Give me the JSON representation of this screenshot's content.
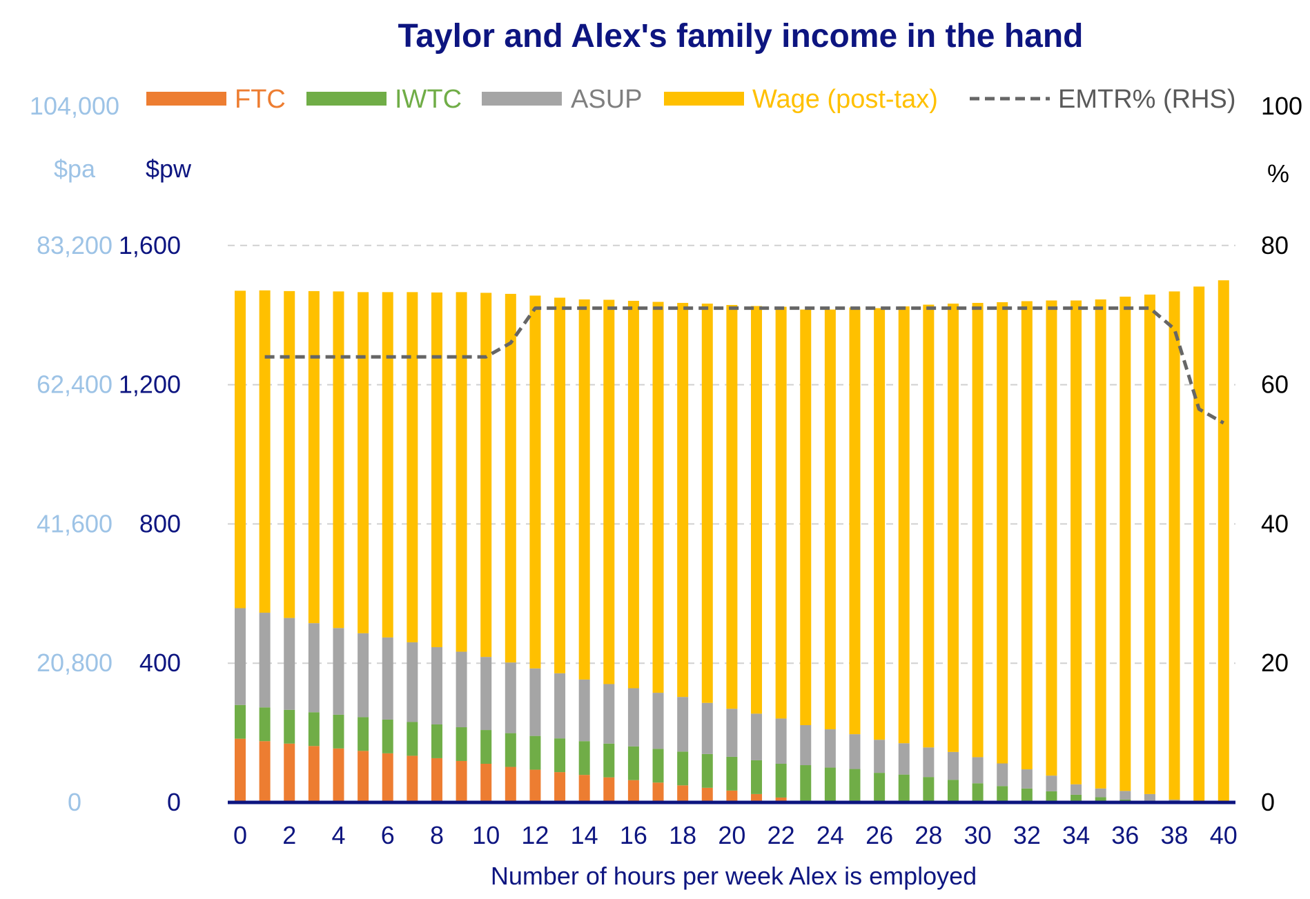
{
  "chart_data": {
    "type": "bar",
    "stacked": true,
    "title": "Taylor and Alex's family income in the hand",
    "xlabel": "Number of hours per week Alex is employed",
    "ylabel_left": "$pw",
    "ylabel_left_secondary": "$pa",
    "ylabel_right": "%",
    "x": [
      0,
      1,
      2,
      3,
      4,
      5,
      6,
      7,
      8,
      9,
      10,
      11,
      12,
      13,
      14,
      15,
      16,
      17,
      18,
      19,
      20,
      21,
      22,
      23,
      24,
      25,
      26,
      27,
      28,
      29,
      30,
      31,
      32,
      33,
      34,
      35,
      36,
      37,
      38,
      39,
      40
    ],
    "x_tick_labels": [
      "0",
      "2",
      "4",
      "6",
      "8",
      "10",
      "12",
      "14",
      "16",
      "18",
      "20",
      "22",
      "24",
      "26",
      "28",
      "30",
      "32",
      "34",
      "36",
      "38",
      "40"
    ],
    "y_pw_ticks": [
      "0",
      "400",
      "800",
      "1,200",
      "1,600"
    ],
    "y_pa_ticks": [
      "0",
      "20,800",
      "41,600",
      "62,400",
      "83,200",
      "104,000"
    ],
    "y_right_ticks": [
      "0",
      "20",
      "40",
      "60",
      "80",
      "100"
    ],
    "ylim_pw": [
      0,
      2000
    ],
    "ylim_right": [
      0,
      100
    ],
    "grid": "horizontal dashed",
    "legend_position": "top",
    "series": [
      {
        "name": "FTC",
        "color": "#ed7d31",
        "values": [
          183,
          176,
          169,
          162,
          155,
          148,
          141,
          134,
          127,
          119,
          111,
          102,
          94,
          87,
          79,
          72,
          64,
          57,
          49,
          42,
          34,
          24,
          14,
          5,
          0,
          0,
          0,
          0,
          0,
          0,
          0,
          0,
          0,
          0,
          0,
          0,
          0,
          0,
          0,
          0,
          0
        ]
      },
      {
        "name": "IWTC",
        "color": "#70ad47",
        "values": [
          97,
          97,
          97,
          97,
          97,
          97,
          97,
          97,
          97,
          97,
          97,
          97,
          97,
          97,
          97,
          97,
          97,
          97,
          97,
          97,
          97,
          97,
          97,
          102,
          100,
          96,
          85,
          80,
          73,
          65,
          55,
          47,
          40,
          32,
          22,
          15,
          8,
          4,
          0,
          0,
          0
        ]
      },
      {
        "name": "ASUP",
        "color": "#a5a5a5",
        "values": [
          278,
          272,
          264,
          256,
          249,
          241,
          236,
          229,
          222,
          217,
          210,
          203,
          194,
          187,
          177,
          171,
          167,
          161,
          157,
          147,
          138,
          134,
          130,
          115,
          110,
          100,
          95,
          90,
          85,
          80,
          75,
          65,
          55,
          45,
          30,
          25,
          25,
          20,
          8,
          3,
          0
        ]
      },
      {
        "name": "Wage (post-tax)",
        "color": "#ffc000",
        "values": [
          912,
          926,
          939,
          954,
          967,
          980,
          992,
          1006,
          1019,
          1033,
          1046,
          1059,
          1071,
          1079,
          1092,
          1104,
          1113,
          1123,
          1132,
          1147,
          1160,
          1171,
          1183,
          1194,
          1206,
          1226,
          1240,
          1255,
          1272,
          1288,
          1305,
          1325,
          1345,
          1365,
          1390,
          1405,
          1420,
          1435,
          1460,
          1479,
          1500
        ]
      },
      {
        "name": "EMTR% (RHS)",
        "color": "#666666",
        "axis": "right",
        "type": "line",
        "values": [
          null,
          64,
          64,
          64,
          64,
          64,
          64,
          64,
          64,
          64,
          64,
          66,
          71,
          71,
          71,
          71,
          71,
          71,
          71,
          71,
          71,
          71,
          71,
          71,
          71,
          71,
          71,
          71,
          71,
          71,
          71,
          71,
          71,
          71,
          71,
          71,
          71,
          71,
          68,
          56.5,
          54.5
        ]
      }
    ]
  }
}
